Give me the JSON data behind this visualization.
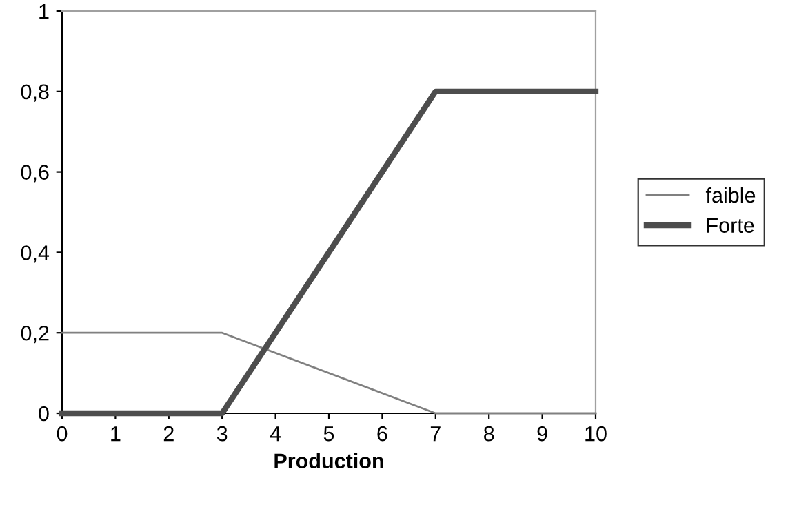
{
  "chart_data": {
    "type": "line",
    "xlabel": "Production",
    "x": [
      0,
      3,
      7,
      10
    ],
    "series": [
      {
        "name": "faible",
        "color": "#808080",
        "values": [
          0.2,
          0.2,
          0,
          0
        ]
      },
      {
        "name": "Forte",
        "color": "#4d4d4d",
        "values": [
          0,
          0,
          0.8,
          0.8
        ]
      }
    ],
    "xlim": [
      0,
      10
    ],
    "xticks": [
      0,
      1,
      2,
      3,
      4,
      5,
      6,
      7,
      8,
      9,
      10
    ],
    "ylim": [
      0,
      1
    ],
    "yticks": [
      0,
      {
        "value": 0.2,
        "label": "0,2"
      },
      {
        "value": 0.4,
        "label": "0,4"
      },
      {
        "value": 0.6,
        "label": "0,6"
      },
      {
        "value": 0.8,
        "label": "0,8"
      },
      1
    ],
    "grid": false,
    "legend": "right",
    "marker": "none",
    "line_style": "solid"
  }
}
